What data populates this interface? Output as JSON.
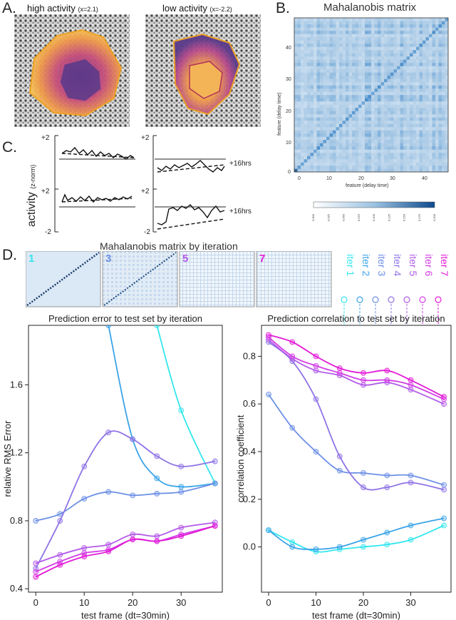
{
  "figure": {
    "panel_letters": {
      "a": "A.",
      "b": "B.",
      "c": "C.",
      "d": "D."
    },
    "colors": {
      "iter1": "#33e6ee",
      "iter2": "#3aa4e8",
      "iter3": "#6c8fe6",
      "iter4": "#8f73e6",
      "iter5": "#b25ae8",
      "iter6": "#d23ee6",
      "iter7": "#e21ad6",
      "heat": "#3a7fc0"
    }
  },
  "panel_a": {
    "high_label": "high activity",
    "high_x": "(x=2.1)",
    "low_label": "low activity",
    "low_x": "(x=-2.2)"
  },
  "panel_b": {
    "title": "Mahalanobis matrix",
    "ylabel": "feature (delay time)",
    "xlabel": "feature (delay time)",
    "xticks": [
      "0",
      "10",
      "20",
      "30",
      "40"
    ],
    "yticks": [
      "0",
      "10",
      "20",
      "30",
      "40"
    ],
    "colorbar_ticks": [
      "0.000",
      "0.025",
      "0.050",
      "0.075",
      "0.100",
      "0.125",
      "0.150",
      "0.175",
      "0.200"
    ]
  },
  "panel_c": {
    "ylabel_main": "activity",
    "ylabel_sub": "(z-norm)",
    "tick_plus": "+2",
    "tick_minus": "-2",
    "annotation": "+16hrs"
  },
  "panel_d": {
    "title": "Mahalanobis matrix by iteration",
    "iter_tiles": [
      "1",
      "3",
      "5",
      "7"
    ],
    "legend": [
      "iter 1",
      "iter 2",
      "iter 3",
      "iter 4",
      "iter 5",
      "iter 6",
      "iter 7"
    ]
  },
  "chart_data": [
    {
      "type": "line",
      "title": "Prediction error to test set by iteration",
      "xlabel": "test frame (dt=30min)",
      "ylabel": "relative RMS Error",
      "xlim": [
        -1.5,
        38.5
      ],
      "ylim": [
        0.38,
        1.95
      ],
      "xticks": [
        0,
        10,
        20,
        30
      ],
      "yticks": [
        0.4,
        0.8,
        1.2,
        1.6
      ],
      "x": [
        0,
        5,
        10,
        15,
        20,
        25,
        30,
        37
      ],
      "series": [
        {
          "name": "iter 1",
          "values": [
            null,
            null,
            null,
            null,
            null,
            1.95,
            1.45,
            1.02
          ]
        },
        {
          "name": "iter 2",
          "values": [
            null,
            null,
            null,
            1.95,
            1.28,
            1.05,
            1.0,
            1.02
          ]
        },
        {
          "name": "iter 3",
          "values": [
            0.8,
            0.84,
            0.93,
            0.97,
            0.95,
            0.96,
            0.97,
            1.02
          ]
        },
        {
          "name": "iter 4",
          "values": [
            0.52,
            0.8,
            1.12,
            1.32,
            1.28,
            1.18,
            1.12,
            1.15
          ]
        },
        {
          "name": "iter 5",
          "values": [
            0.55,
            0.6,
            0.64,
            0.66,
            0.72,
            0.71,
            0.76,
            0.79
          ]
        },
        {
          "name": "iter 6",
          "values": [
            0.5,
            0.56,
            0.61,
            0.63,
            0.69,
            0.68,
            0.72,
            0.77
          ]
        },
        {
          "name": "iter 7",
          "values": [
            0.47,
            0.54,
            0.59,
            0.62,
            0.69,
            0.68,
            0.71,
            0.77
          ]
        }
      ]
    },
    {
      "type": "line",
      "title": "Prediction correlation to test set by iteration",
      "xlabel": "test frame (dt=30min)",
      "ylabel": "correlation coefficient",
      "xlim": [
        -1.5,
        38.5
      ],
      "ylim": [
        -0.19,
        0.93
      ],
      "xticks": [
        0,
        10,
        20,
        30
      ],
      "yticks": [
        0.0,
        0.2,
        0.4,
        0.6,
        0.8
      ],
      "x": [
        0,
        5,
        10,
        15,
        20,
        25,
        30,
        37
      ],
      "series": [
        {
          "name": "iter 1",
          "values": [
            0.07,
            0.02,
            -0.02,
            -0.01,
            0.0,
            0.01,
            0.03,
            0.09
          ]
        },
        {
          "name": "iter 2",
          "values": [
            0.07,
            0.0,
            -0.01,
            0.0,
            0.03,
            0.06,
            0.09,
            0.12
          ]
        },
        {
          "name": "iter 3",
          "values": [
            0.64,
            0.5,
            0.4,
            0.32,
            0.31,
            0.3,
            0.3,
            0.26
          ]
        },
        {
          "name": "iter 4",
          "values": [
            0.86,
            0.78,
            0.62,
            0.38,
            0.25,
            0.25,
            0.27,
            0.24
          ]
        },
        {
          "name": "iter 5",
          "values": [
            0.87,
            0.79,
            0.74,
            0.72,
            0.68,
            0.69,
            0.66,
            0.6
          ]
        },
        {
          "name": "iter 6",
          "values": [
            0.88,
            0.8,
            0.76,
            0.73,
            0.7,
            0.7,
            0.68,
            0.62
          ]
        },
        {
          "name": "iter 7",
          "values": [
            0.89,
            0.86,
            0.8,
            0.75,
            0.73,
            0.74,
            0.7,
            0.63
          ]
        }
      ]
    }
  ]
}
